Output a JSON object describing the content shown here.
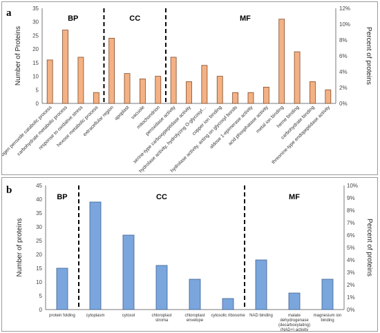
{
  "chart_data": [
    {
      "panel_label": "a",
      "type": "bar",
      "ylabel": "Number of Proteins",
      "ylabel_right": "Percent of proteins",
      "ylim": [
        0,
        35
      ],
      "yticks": [
        "0",
        "5",
        "10",
        "15",
        "20",
        "25",
        "30",
        "35"
      ],
      "ylim_right": [
        0,
        12
      ],
      "yticks_right": [
        "0%",
        "2%",
        "4%",
        "6%",
        "8%",
        "10%",
        "12%"
      ],
      "bar_color": "#f4b183",
      "bar_edge": "#7f4a2a",
      "sections": [
        {
          "label": "BP",
          "start": 0,
          "end": 4
        },
        {
          "label": "CC",
          "start": 4,
          "end": 8
        },
        {
          "label": "MF",
          "start": 8,
          "end": 19
        }
      ],
      "categories": [
        "hydrogen peroxide catabolic process",
        "carbohydrate metabolic process",
        "response to oxidative stress",
        "hexose metabolic process",
        "extracellular region",
        "apoplast",
        "vacuole",
        "mitochondrion",
        "peroxidase activity",
        "serine-type carboxypeptidase activity",
        "hydrolase activity, hydrolyzing O-glycosyl…",
        "copper ion binding",
        "hydrolase activity, acting on glycosyl bonds",
        "aldose 1-epimerase activity",
        "acid phosphatase activity",
        "metal ion binding",
        "heme binding",
        "carbohydrate binding",
        "threonine-type endopeptidase activity"
      ],
      "values": [
        16,
        27,
        17,
        4,
        24,
        11,
        9,
        10,
        17,
        8,
        14,
        10,
        4,
        4,
        6,
        31,
        19,
        8,
        5
      ],
      "grid": false
    },
    {
      "panel_label": "b",
      "type": "bar",
      "ylabel": "Number of proteins",
      "ylabel_right": "Percent of proteins",
      "ylim": [
        0,
        45
      ],
      "yticks": [
        "0",
        "5",
        "10",
        "15",
        "20",
        "25",
        "30",
        "35",
        "40",
        "45"
      ],
      "ylim_right": [
        0,
        10
      ],
      "yticks_right": [
        "0%",
        "1%",
        "2%",
        "3%",
        "4%",
        "5%",
        "6%",
        "7%",
        "8%",
        "9%",
        "10%"
      ],
      "bar_color": "#7aa6dd",
      "bar_edge": "#3f5f8f",
      "sections": [
        {
          "label": "BP",
          "start": 0,
          "end": 1
        },
        {
          "label": "CC",
          "start": 1,
          "end": 6
        },
        {
          "label": "MF",
          "start": 6,
          "end": 9
        }
      ],
      "categories": [
        "protein folding",
        "cytoplasm",
        "cytosol",
        "chloroplast stroma",
        "chloroplast envelope",
        "cytosolic ribosome",
        "NAD binding",
        "malate dehydrogenase (decarboxylating) (NAD+) activity",
        "magnesium ion binding"
      ],
      "category_lines": [
        [
          "protein folding"
        ],
        [
          "cytoplasm"
        ],
        [
          "cytosol"
        ],
        [
          "chloroplast",
          "stroma"
        ],
        [
          "chloroplast",
          "envelope"
        ],
        [
          "cytosolic ribosome"
        ],
        [
          "NAD binding"
        ],
        [
          "malate",
          "dehydrogenase",
          "(decarboxylating)",
          "(NAD+) activity"
        ],
        [
          "magnesium ion",
          "binding"
        ]
      ],
      "values": [
        15,
        39,
        27,
        16,
        11,
        4,
        18,
        6,
        11
      ],
      "grid": false
    }
  ]
}
